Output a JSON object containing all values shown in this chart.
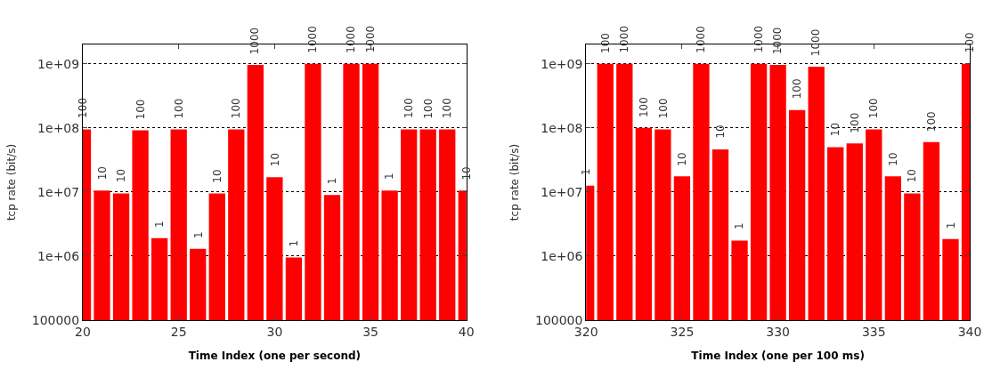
{
  "chart_data": [
    {
      "type": "bar",
      "xlabel": "Time Index (one per second)",
      "ylabel": "tcp rate (bit/s)",
      "log": true,
      "grid": "y",
      "color": "#ff0000",
      "x": [
        20,
        21,
        22,
        23,
        24,
        25,
        26,
        27,
        28,
        29,
        30,
        31,
        32,
        33,
        34,
        35,
        36,
        37,
        38,
        39,
        40
      ],
      "values": [
        95000000,
        10500000,
        9500000,
        92000000,
        1900000,
        95000000,
        1300000,
        9500000,
        95000000,
        960000000,
        17000000,
        950000,
        1000000000,
        9000000,
        1000000000,
        1000000000,
        10500000,
        95000000,
        95000000,
        95000000,
        10500000
      ],
      "annotations": [
        {
          "text": "100",
          "x": 20,
          "y": 95000000
        },
        {
          "text": "10",
          "x": 21,
          "y": 10500000
        },
        {
          "text": "10",
          "x": 22,
          "y": 9500000
        },
        {
          "text": "100",
          "x": 23,
          "y": 92000000
        },
        {
          "text": "1",
          "x": 24,
          "y": 1900000
        },
        {
          "text": "100",
          "x": 25,
          "y": 95000000
        },
        {
          "text": "1",
          "x": 26,
          "y": 1300000
        },
        {
          "text": "10",
          "x": 27,
          "y": 9500000
        },
        {
          "text": "100",
          "x": 28,
          "y": 95000000
        },
        {
          "text": "1000",
          "x": 29,
          "y": 960000000
        },
        {
          "text": "10",
          "x": 30,
          "y": 17000000
        },
        {
          "text": "1",
          "x": 31,
          "y": 950000
        },
        {
          "text": "1000",
          "x": 32,
          "y": 1000000000
        },
        {
          "text": "1",
          "x": 33,
          "y": 9000000
        },
        {
          "text": "1000",
          "x": 34,
          "y": 1000000000
        },
        {
          "text": "1000",
          "x": 35,
          "y": 1000000000
        },
        {
          "text": "1",
          "x": 36,
          "y": 10500000
        },
        {
          "text": "100",
          "x": 37,
          "y": 95000000
        },
        {
          "text": "100",
          "x": 38,
          "y": 95000000
        },
        {
          "text": "100",
          "x": 39,
          "y": 95000000
        },
        {
          "text": "10",
          "x": 40,
          "y": 10500000
        }
      ],
      "xlim": [
        20,
        40
      ],
      "xticks": [
        20,
        25,
        30,
        35,
        40
      ],
      "ylim": [
        100000,
        2000000000
      ],
      "yticks": [
        100000,
        {
          "value": 1000000,
          "label": "1e+06"
        },
        {
          "value": 10000000,
          "label": "1e+07"
        },
        {
          "value": 100000000,
          "label": "1e+08"
        },
        {
          "value": 1000000000,
          "label": "1e+09"
        }
      ]
    },
    {
      "type": "bar",
      "xlabel": "Time Index (one per 100 ms)",
      "ylabel": "tcp rate (bit/s)",
      "log": true,
      "grid": "y",
      "color": "#ff0000",
      "x": [
        320,
        321,
        322,
        323,
        324,
        325,
        326,
        327,
        328,
        329,
        330,
        331,
        332,
        333,
        334,
        335,
        336,
        337,
        338,
        339,
        340
      ],
      "values": [
        12500000,
        1000000000,
        1000000000,
        100000000,
        95000000,
        17500000,
        1000000000,
        46000000,
        1750000,
        1000000000,
        960000000,
        190000000,
        900000000,
        50000000,
        57000000,
        95000000,
        17500000,
        9500000,
        60000000,
        1850000,
        1000000000
      ],
      "annotations": [
        {
          "text": "1",
          "x": 320,
          "y": 12500000
        },
        {
          "text": "100",
          "x": 321,
          "y": 1000000000
        },
        {
          "text": "1000",
          "x": 322,
          "y": 1000000000
        },
        {
          "text": "100",
          "x": 323,
          "y": 100000000
        },
        {
          "text": "100",
          "x": 324,
          "y": 95000000
        },
        {
          "text": "10",
          "x": 325,
          "y": 17500000
        },
        {
          "text": "1000",
          "x": 326,
          "y": 1000000000
        },
        {
          "text": "10",
          "x": 327,
          "y": 46000000
        },
        {
          "text": "1",
          "x": 328,
          "y": 1750000
        },
        {
          "text": "1000",
          "x": 329,
          "y": 1000000000
        },
        {
          "text": "1000",
          "x": 330,
          "y": 960000000
        },
        {
          "text": "100",
          "x": 331,
          "y": 190000000
        },
        {
          "text": "1000",
          "x": 332,
          "y": 900000000
        },
        {
          "text": "10",
          "x": 333,
          "y": 50000000
        },
        {
          "text": "100",
          "x": 334,
          "y": 57000000
        },
        {
          "text": "100",
          "x": 335,
          "y": 95000000
        },
        {
          "text": "10",
          "x": 336,
          "y": 17500000
        },
        {
          "text": "10",
          "x": 337,
          "y": 9500000
        },
        {
          "text": "100",
          "x": 338,
          "y": 60000000
        },
        {
          "text": "1",
          "x": 339,
          "y": 1850000
        },
        {
          "text": "100",
          "x": 340,
          "y": 1000000000
        }
      ],
      "xlim": [
        320,
        340
      ],
      "xticks": [
        320,
        325,
        330,
        335,
        340
      ],
      "ylim": [
        100000,
        2000000000
      ],
      "yticks": [
        100000,
        {
          "value": 1000000,
          "label": "1e+06"
        },
        {
          "value": 10000000,
          "label": "1e+07"
        },
        {
          "value": 100000000,
          "label": "1e+08"
        },
        {
          "value": 1000000000,
          "label": "1e+09"
        }
      ]
    }
  ]
}
